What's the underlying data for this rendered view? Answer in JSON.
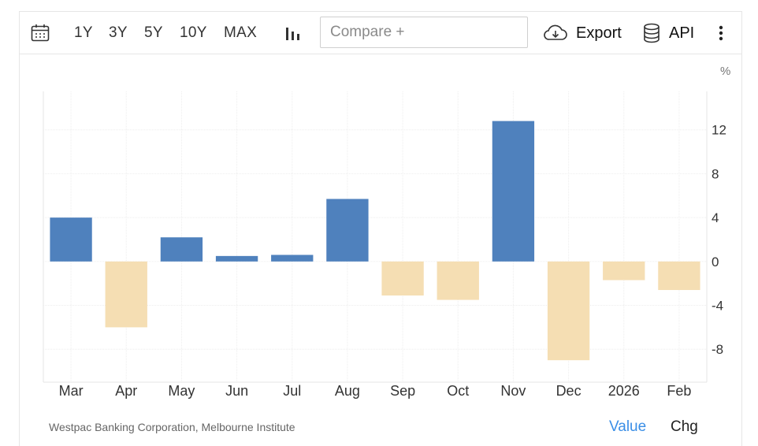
{
  "toolbar": {
    "ranges": [
      "1Y",
      "3Y",
      "5Y",
      "10Y",
      "MAX"
    ],
    "compare_placeholder": "Compare +",
    "export_label": "Export",
    "api_label": "API"
  },
  "footer": {
    "source": "Westpac Banking Corporation, Melbourne Institute",
    "value_label": "Value",
    "chg_label": "Chg"
  },
  "colors": {
    "positive": "#4f81bd",
    "negative": "#f5deb3",
    "active_toggle": "#3a8ee6"
  },
  "chart_data": {
    "type": "bar",
    "unit": "%",
    "categories": [
      "Mar",
      "Apr",
      "May",
      "Jun",
      "Jul",
      "Aug",
      "Sep",
      "Oct",
      "Nov",
      "Dec",
      "2026",
      "Feb"
    ],
    "values": [
      4.0,
      -6.0,
      2.2,
      0.5,
      0.6,
      5.7,
      -3.1,
      -3.5,
      12.8,
      -9.0,
      -1.7,
      -2.6
    ],
    "yticks": [
      12,
      8,
      4,
      0,
      -4,
      -8
    ],
    "ylim": [
      -11,
      15.5
    ],
    "grid": true
  }
}
